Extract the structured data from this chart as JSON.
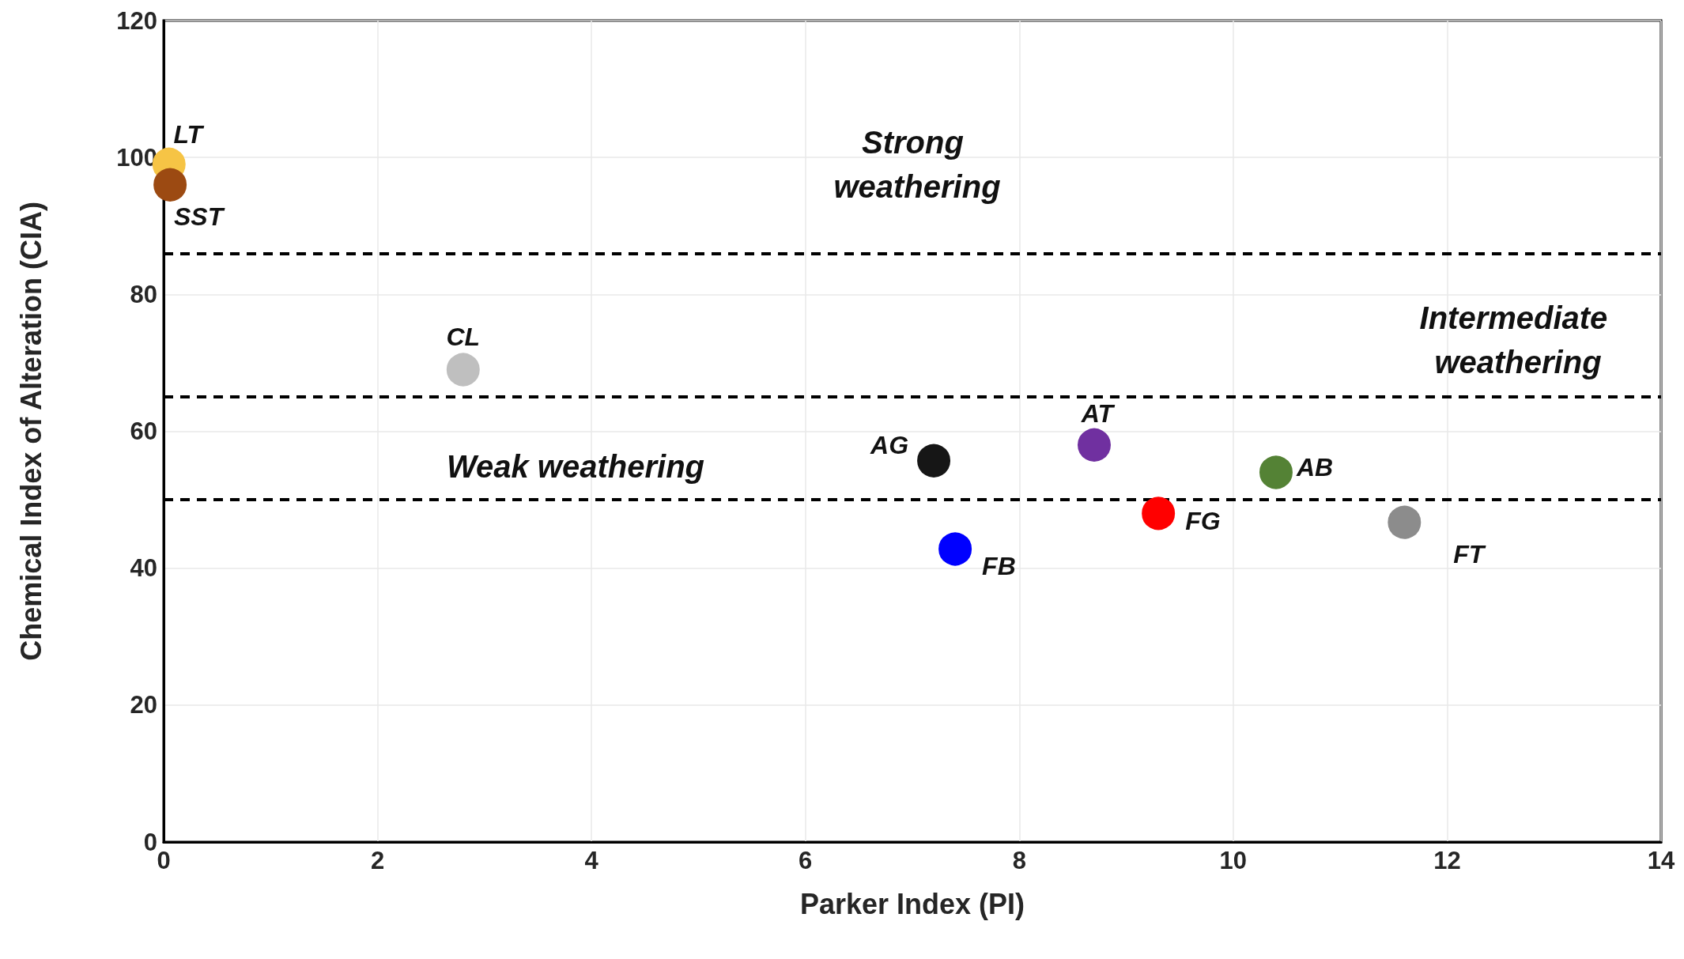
{
  "chart_data": {
    "type": "scatter",
    "xlabel": "Parker Index (PI)",
    "ylabel": "Chemical Index of Alteration (CIA)",
    "xlim": [
      0,
      14
    ],
    "xticks": [
      0,
      2,
      4,
      6,
      8,
      10,
      12,
      14
    ],
    "ylim": [
      0,
      120
    ],
    "yticks": [
      0,
      20,
      40,
      60,
      80,
      100,
      120
    ],
    "grid": true,
    "legend": false,
    "marker": "circle",
    "series": [
      {
        "name": "LT",
        "color": "#f6c445",
        "x": [
          0.05
        ],
        "values": [
          99
        ]
      },
      {
        "name": "SST",
        "color": "#9c4a12",
        "x": [
          0.06
        ],
        "values": [
          96
        ]
      },
      {
        "name": "CL",
        "color": "#bfbfbf",
        "x": [
          2.8
        ],
        "values": [
          69
        ]
      },
      {
        "name": "AG",
        "color": "#161616",
        "x": [
          7.2
        ],
        "values": [
          55.7
        ]
      },
      {
        "name": "AT",
        "color": "#7030a0",
        "x": [
          8.7
        ],
        "values": [
          58
        ]
      },
      {
        "name": "AB",
        "color": "#548235",
        "x": [
          10.4
        ],
        "values": [
          54
        ]
      },
      {
        "name": "FB",
        "color": "#0000ff",
        "x": [
          7.4
        ],
        "values": [
          42.8
        ]
      },
      {
        "name": "FG",
        "color": "#ff0000",
        "x": [
          9.3
        ],
        "values": [
          48
        ]
      },
      {
        "name": "FT",
        "color": "#8c8c8c",
        "x": [
          11.6
        ],
        "values": [
          46.7
        ]
      }
    ],
    "ref_lines": [
      {
        "axis": "y",
        "value": 86,
        "line_style": "dashed",
        "color": "#000000"
      },
      {
        "axis": "y",
        "value": 65,
        "line_style": "dashed",
        "color": "#000000"
      },
      {
        "axis": "y",
        "value": 50,
        "line_style": "dashed",
        "color": "#000000"
      }
    ],
    "annotations": [
      "Strong weathering",
      "Intermediate weathering",
      "Weak weathering"
    ]
  }
}
